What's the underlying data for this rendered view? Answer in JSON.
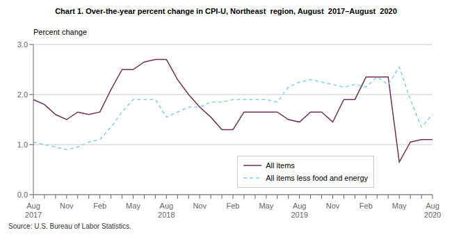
{
  "chart_data": {
    "type": "line",
    "title": "Chart 1. Over-the-year percent change in CPI-U, Northeast  region, August  2017–August  2020",
    "y_label": "Percent change",
    "annotations": [
      "Source: U.S. Bureau of Labor Statistics."
    ],
    "categories": [
      "Aug\n2017",
      null,
      null,
      "Nov",
      null,
      null,
      "Feb",
      null,
      null,
      "May",
      null,
      null,
      "Aug\n2018",
      null,
      null,
      "Nov",
      null,
      null,
      "Feb",
      null,
      null,
      "May",
      null,
      null,
      "Aug\n2019",
      null,
      null,
      "Nov",
      null,
      null,
      "Feb",
      null,
      null,
      "May",
      null,
      null,
      "Aug\n2020"
    ],
    "series": [
      {
        "name": "All items",
        "color": "#722f57",
        "line_style": "solid",
        "values": [
          1.9,
          1.8,
          1.6,
          1.5,
          1.65,
          1.6,
          1.65,
          2.1,
          2.5,
          2.5,
          2.65,
          2.7,
          2.7,
          2.3,
          2.0,
          1.75,
          1.55,
          1.3,
          1.3,
          1.65,
          1.65,
          1.65,
          1.65,
          1.5,
          1.45,
          1.65,
          1.65,
          1.45,
          1.9,
          1.9,
          2.35,
          2.35,
          2.35,
          0.65,
          1.05,
          1.1,
          1.1
        ]
      },
      {
        "name": "All items less food and energy",
        "color": "#87ceeb",
        "line_style": "dashed",
        "values": [
          1.05,
          1.0,
          0.95,
          0.9,
          0.95,
          1.05,
          1.1,
          1.35,
          1.65,
          1.9,
          1.9,
          1.9,
          1.55,
          1.65,
          1.75,
          1.75,
          1.85,
          1.85,
          1.9,
          1.9,
          1.9,
          1.9,
          1.85,
          2.15,
          2.25,
          2.3,
          2.25,
          2.2,
          2.15,
          2.2,
          2.15,
          2.35,
          2.2,
          2.55,
          1.9,
          1.35,
          1.6
        ]
      }
    ],
    "ylim": [
      0.0,
      3.0
    ],
    "yticks": [
      {
        "value": 0,
        "label": "0.0"
      },
      {
        "value": 1,
        "label": "1.0"
      },
      {
        "value": 2,
        "label": "2.0"
      },
      {
        "value": 3,
        "label": "3.0"
      }
    ],
    "grid": "y",
    "legend": "lower right"
  }
}
